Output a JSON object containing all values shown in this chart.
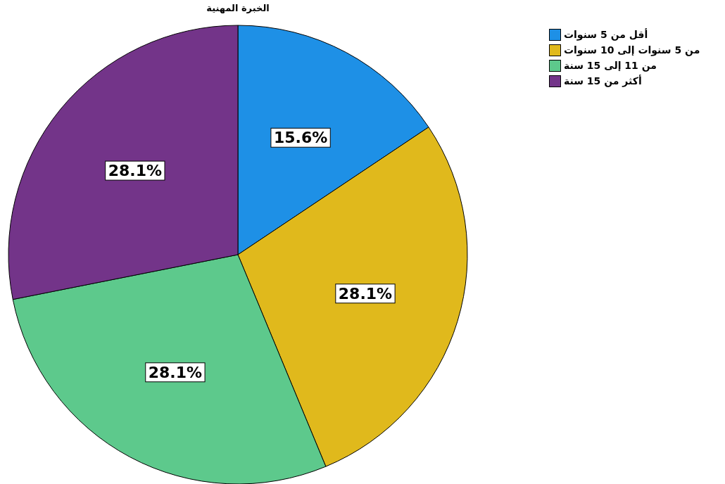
{
  "chart_data": {
    "type": "pie",
    "title": "الخبرة المهنية",
    "categories": [
      "أقل من 5 سنوات",
      "من 5 سنوات إلى 10 سنوات",
      "من 11 إلى 15 سنة",
      "أكثر من 15 سنة"
    ],
    "values": [
      15.6,
      28.1,
      28.1,
      28.1
    ],
    "colors": [
      "#1e90e6",
      "#e0b91c",
      "#5dc98c",
      "#733489"
    ],
    "value_labels": [
      "15.6%",
      "28.1%",
      "28.1%",
      "28.1%"
    ],
    "legend": "top right"
  }
}
